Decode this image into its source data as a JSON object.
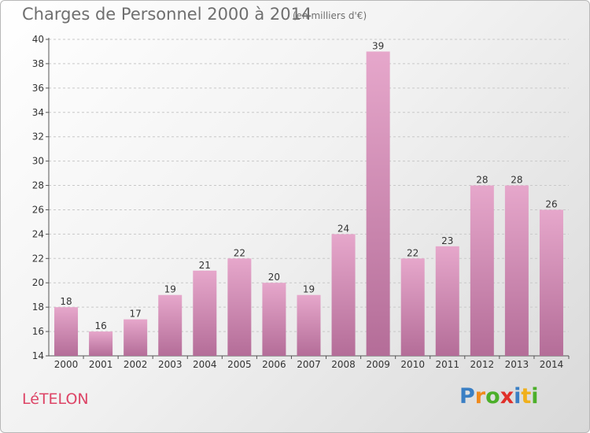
{
  "header": {
    "title": "Charges de Personnel 2000 à 2014",
    "subtitle": "(en milliers d'€)"
  },
  "footer": {
    "place": "LéTELON",
    "logo_letters": [
      "P",
      "r",
      "o",
      "x",
      "i",
      "t",
      "i"
    ],
    "logo_colors": [
      "#3a7fc4",
      "#f08a1c",
      "#4caf2a",
      "#e0302a",
      "#3a7fc4",
      "#f0b01c",
      "#4caf2a"
    ]
  },
  "chart_data": {
    "type": "bar",
    "title": "Charges de Personnel 2000 à 2014",
    "subtitle": "(en milliers d'€)",
    "categories": [
      "2000",
      "2001",
      "2002",
      "2003",
      "2004",
      "2005",
      "2006",
      "2007",
      "2008",
      "2009",
      "2010",
      "2011",
      "2012",
      "2013",
      "2014"
    ],
    "values": [
      18,
      16,
      17,
      19,
      21,
      22,
      20,
      19,
      24,
      39,
      22,
      23,
      28,
      28,
      26
    ],
    "ylim": [
      14,
      40
    ],
    "yticks": [
      14,
      16,
      18,
      20,
      22,
      24,
      26,
      28,
      30,
      32,
      34,
      36,
      38,
      40
    ],
    "grid": true,
    "bar_color_top": "#e6a7cb",
    "bar_color_bottom": "#b46d98",
    "xlabel": "",
    "ylabel": ""
  }
}
